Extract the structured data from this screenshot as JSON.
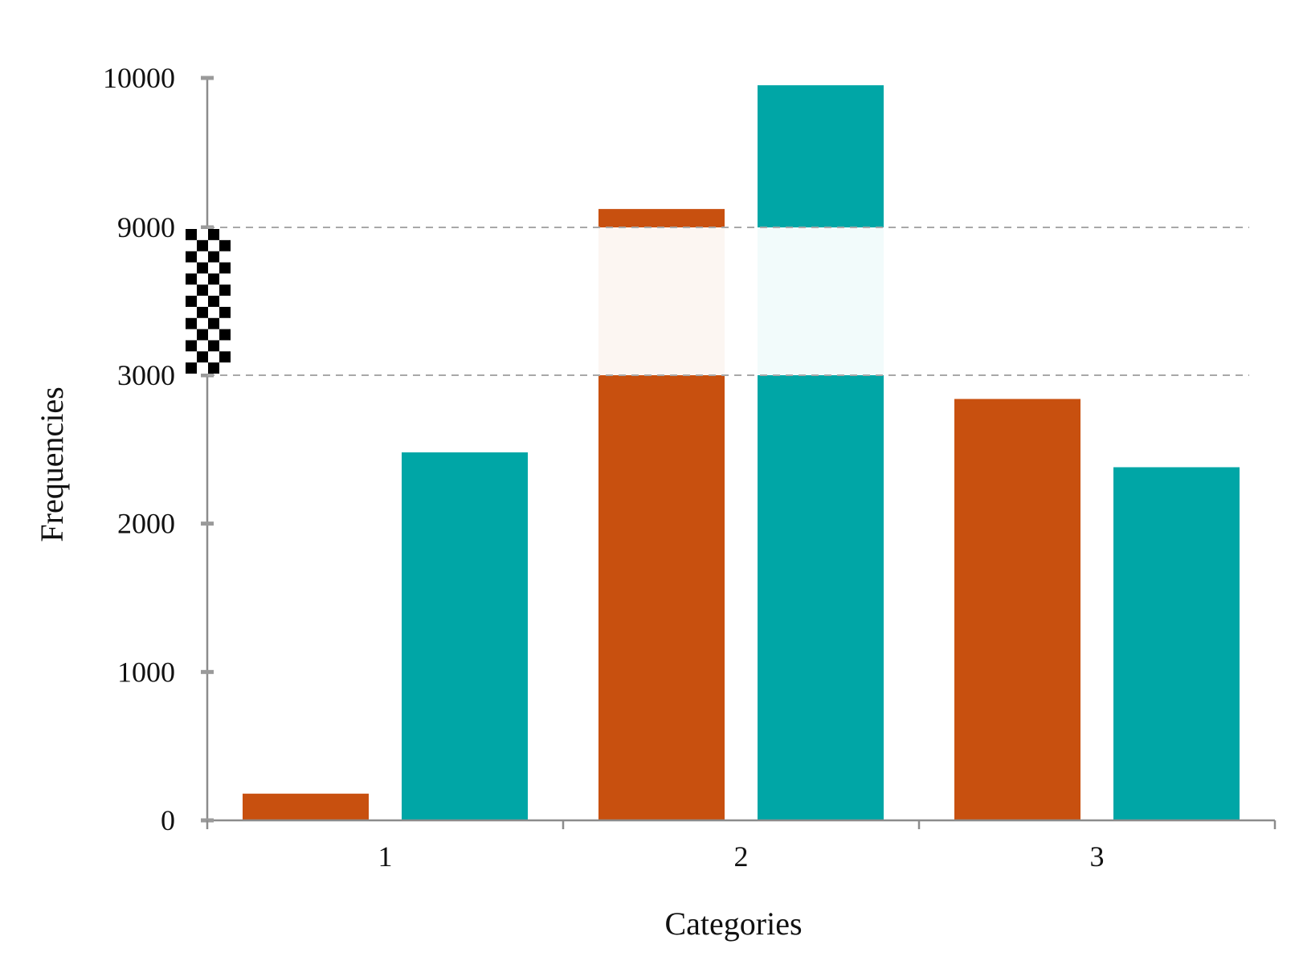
{
  "chart_data": {
    "type": "bar",
    "title": "",
    "xlabel": "Categories",
    "ylabel": "Frequencies",
    "categories": [
      "1",
      "2",
      "3"
    ],
    "series": [
      {
        "values": [
          180,
          9123,
          2840
        ],
        "color": "#C8500F"
      },
      {
        "values": [
          2480,
          9951,
          2380
        ],
        "color": "#00A6A6"
      }
    ],
    "y_axis": {
      "scale": "broken",
      "break": {
        "from": 3000,
        "to": 9000,
        "marker": "checkerboard"
      },
      "ticks": [
        "0",
        "1000",
        "2000",
        "3000",
        "9000",
        "10000"
      ],
      "ylim": [
        0,
        10000
      ]
    },
    "grid": {
      "style": "dashed",
      "at": [
        3000,
        9000
      ]
    },
    "legend": "none"
  }
}
